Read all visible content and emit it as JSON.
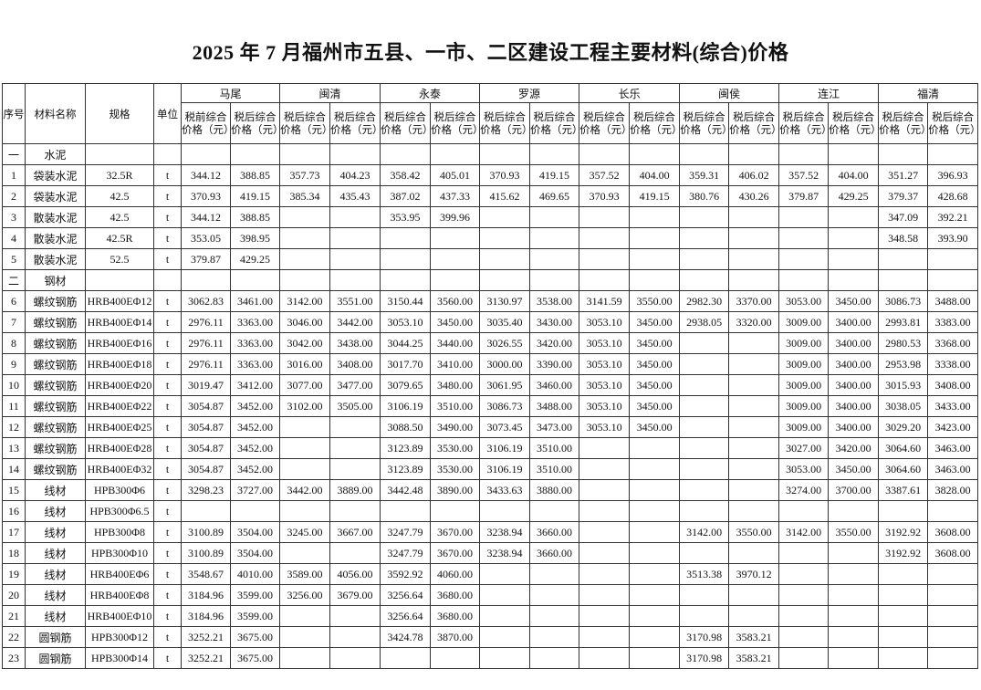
{
  "title": "2025 年 7 月福州市五县、一市、二区建设工程主要材料(综合)价格",
  "headers": {
    "no": "序号",
    "name": "材料名称",
    "spec": "规格",
    "unit": "单位",
    "regions": [
      "马尾",
      "闽清",
      "永泰",
      "罗源",
      "长乐",
      "闽侯",
      "连江",
      "福清"
    ],
    "price_cols": [
      "税前综合价格（元）",
      "税后综合价格（元）",
      "税后综合价格（元）",
      "税后综合价格（元）",
      "税后综合价格（元）",
      "税后综合价格（元）",
      "税后综合价格（元）",
      "税后综合价格（元）",
      "税后综合价格（元）",
      "税后综合价格（元）",
      "税后综合价格（元）",
      "税后综合价格（元）",
      "税后综合价格（元）",
      "税后综合价格（元）",
      "税后综合价格（元）",
      "税后综合价格（元）"
    ]
  },
  "rows": [
    {
      "section": true,
      "no": "一",
      "name": "水泥"
    },
    {
      "no": "1",
      "name": "袋装水泥",
      "spec": "32.5R",
      "unit": "t",
      "prices": [
        "344.12",
        "388.85",
        "357.73",
        "404.23",
        "358.42",
        "405.01",
        "370.93",
        "419.15",
        "357.52",
        "404.00",
        "359.31",
        "406.02",
        "357.52",
        "404.00",
        "351.27",
        "396.93"
      ]
    },
    {
      "no": "2",
      "name": "袋装水泥",
      "spec": "42.5",
      "unit": "t",
      "prices": [
        "370.93",
        "419.15",
        "385.34",
        "435.43",
        "387.02",
        "437.33",
        "415.62",
        "469.65",
        "370.93",
        "419.15",
        "380.76",
        "430.26",
        "379.87",
        "429.25",
        "379.37",
        "428.68"
      ]
    },
    {
      "no": "3",
      "name": "散装水泥",
      "spec": "42.5",
      "unit": "t",
      "prices": [
        "344.12",
        "388.85",
        "",
        "",
        "353.95",
        "399.96",
        "",
        "",
        "",
        "",
        "",
        "",
        "",
        "",
        "347.09",
        "392.21"
      ]
    },
    {
      "no": "4",
      "name": "散装水泥",
      "spec": "42.5R",
      "unit": "t",
      "prices": [
        "353.05",
        "398.95",
        "",
        "",
        "",
        "",
        "",
        "",
        "",
        "",
        "",
        "",
        "",
        "",
        "348.58",
        "393.90"
      ]
    },
    {
      "no": "5",
      "name": "散装水泥",
      "spec": "52.5",
      "unit": "t",
      "prices": [
        "379.87",
        "429.25",
        "",
        "",
        "",
        "",
        "",
        "",
        "",
        "",
        "",
        "",
        "",
        "",
        "",
        ""
      ]
    },
    {
      "section": true,
      "no": "二",
      "name": "钢材"
    },
    {
      "no": "6",
      "name": "螺纹钢筋",
      "spec": "HRB400EΦ12",
      "unit": "t",
      "prices": [
        "3062.83",
        "3461.00",
        "3142.00",
        "3551.00",
        "3150.44",
        "3560.00",
        "3130.97",
        "3538.00",
        "3141.59",
        "3550.00",
        "2982.30",
        "3370.00",
        "3053.00",
        "3450.00",
        "3086.73",
        "3488.00"
      ]
    },
    {
      "no": "7",
      "name": "螺纹钢筋",
      "spec": "HRB400EΦ14",
      "unit": "t",
      "prices": [
        "2976.11",
        "3363.00",
        "3046.00",
        "3442.00",
        "3053.10",
        "3450.00",
        "3035.40",
        "3430.00",
        "3053.10",
        "3450.00",
        "2938.05",
        "3320.00",
        "3009.00",
        "3400.00",
        "2993.81",
        "3383.00"
      ]
    },
    {
      "no": "8",
      "name": "螺纹钢筋",
      "spec": "HRB400EΦ16",
      "unit": "t",
      "prices": [
        "2976.11",
        "3363.00",
        "3042.00",
        "3438.00",
        "3044.25",
        "3440.00",
        "3026.55",
        "3420.00",
        "3053.10",
        "3450.00",
        "",
        "",
        "3009.00",
        "3400.00",
        "2980.53",
        "3368.00"
      ]
    },
    {
      "no": "9",
      "name": "螺纹钢筋",
      "spec": "HRB400EΦ18",
      "unit": "t",
      "prices": [
        "2976.11",
        "3363.00",
        "3016.00",
        "3408.00",
        "3017.70",
        "3410.00",
        "3000.00",
        "3390.00",
        "3053.10",
        "3450.00",
        "",
        "",
        "3009.00",
        "3400.00",
        "2953.98",
        "3338.00"
      ]
    },
    {
      "no": "10",
      "name": "螺纹钢筋",
      "spec": "HRB400EΦ20",
      "unit": "t",
      "prices": [
        "3019.47",
        "3412.00",
        "3077.00",
        "3477.00",
        "3079.65",
        "3480.00",
        "3061.95",
        "3460.00",
        "3053.10",
        "3450.00",
        "",
        "",
        "3009.00",
        "3400.00",
        "3015.93",
        "3408.00"
      ]
    },
    {
      "no": "11",
      "name": "螺纹钢筋",
      "spec": "HRB400EΦ22",
      "unit": "t",
      "prices": [
        "3054.87",
        "3452.00",
        "3102.00",
        "3505.00",
        "3106.19",
        "3510.00",
        "3086.73",
        "3488.00",
        "3053.10",
        "3450.00",
        "",
        "",
        "3009.00",
        "3400.00",
        "3038.05",
        "3433.00"
      ]
    },
    {
      "no": "12",
      "name": "螺纹钢筋",
      "spec": "HRB400EΦ25",
      "unit": "t",
      "prices": [
        "3054.87",
        "3452.00",
        "",
        "",
        "3088.50",
        "3490.00",
        "3073.45",
        "3473.00",
        "3053.10",
        "3450.00",
        "",
        "",
        "3009.00",
        "3400.00",
        "3029.20",
        "3423.00"
      ]
    },
    {
      "no": "13",
      "name": "螺纹钢筋",
      "spec": "HRB400EΦ28",
      "unit": "t",
      "prices": [
        "3054.87",
        "3452.00",
        "",
        "",
        "3123.89",
        "3530.00",
        "3106.19",
        "3510.00",
        "",
        "",
        "",
        "",
        "3027.00",
        "3420.00",
        "3064.60",
        "3463.00"
      ]
    },
    {
      "no": "14",
      "name": "螺纹钢筋",
      "spec": "HRB400EΦ32",
      "unit": "t",
      "prices": [
        "3054.87",
        "3452.00",
        "",
        "",
        "3123.89",
        "3530.00",
        "3106.19",
        "3510.00",
        "",
        "",
        "",
        "",
        "3053.00",
        "3450.00",
        "3064.60",
        "3463.00"
      ]
    },
    {
      "no": "15",
      "name": "线材",
      "spec": "HPB300Φ6",
      "unit": "t",
      "prices": [
        "3298.23",
        "3727.00",
        "3442.00",
        "3889.00",
        "3442.48",
        "3890.00",
        "3433.63",
        "3880.00",
        "",
        "",
        "",
        "",
        "3274.00",
        "3700.00",
        "3387.61",
        "3828.00"
      ]
    },
    {
      "no": "16",
      "name": "线材",
      "spec": "HPB300Φ6.5",
      "unit": "t",
      "prices": [
        "",
        "",
        "",
        "",
        "",
        "",
        "",
        "",
        "",
        "",
        "",
        "",
        "",
        "",
        "",
        ""
      ]
    },
    {
      "no": "17",
      "name": "线材",
      "spec": "HPB300Φ8",
      "unit": "t",
      "prices": [
        "3100.89",
        "3504.00",
        "3245.00",
        "3667.00",
        "3247.79",
        "3670.00",
        "3238.94",
        "3660.00",
        "",
        "",
        "3142.00",
        "3550.00",
        "3142.00",
        "3550.00",
        "3192.92",
        "3608.00"
      ]
    },
    {
      "no": "18",
      "name": "线材",
      "spec": "HPB300Φ10",
      "unit": "t",
      "prices": [
        "3100.89",
        "3504.00",
        "",
        "",
        "3247.79",
        "3670.00",
        "3238.94",
        "3660.00",
        "",
        "",
        "",
        "",
        "",
        "",
        "3192.92",
        "3608.00"
      ]
    },
    {
      "no": "19",
      "name": "线材",
      "spec": "HRB400EΦ6",
      "unit": "t",
      "prices": [
        "3548.67",
        "4010.00",
        "3589.00",
        "4056.00",
        "3592.92",
        "4060.00",
        "",
        "",
        "",
        "",
        "3513.38",
        "3970.12",
        "",
        "",
        "",
        ""
      ]
    },
    {
      "no": "20",
      "name": "线材",
      "spec": "HRB400EΦ8",
      "unit": "t",
      "prices": [
        "3184.96",
        "3599.00",
        "3256.00",
        "3679.00",
        "3256.64",
        "3680.00",
        "",
        "",
        "",
        "",
        "",
        "",
        "",
        "",
        "",
        ""
      ]
    },
    {
      "no": "21",
      "name": "线材",
      "spec": "HRB400EΦ10",
      "unit": "t",
      "prices": [
        "3184.96",
        "3599.00",
        "",
        "",
        "3256.64",
        "3680.00",
        "",
        "",
        "",
        "",
        "",
        "",
        "",
        "",
        "",
        ""
      ]
    },
    {
      "no": "22",
      "name": "圆钢筋",
      "spec": "HPB300Φ12",
      "unit": "t",
      "prices": [
        "3252.21",
        "3675.00",
        "",
        "",
        "3424.78",
        "3870.00",
        "",
        "",
        "",
        "",
        "3170.98",
        "3583.21",
        "",
        "",
        "",
        ""
      ]
    },
    {
      "no": "23",
      "name": "圆钢筋",
      "spec": "HPB300Φ14",
      "unit": "t",
      "prices": [
        "3252.21",
        "3675.00",
        "",
        "",
        "",
        "",
        "",
        "",
        "",
        "",
        "3170.98",
        "3583.21",
        "",
        "",
        "",
        ""
      ]
    }
  ]
}
